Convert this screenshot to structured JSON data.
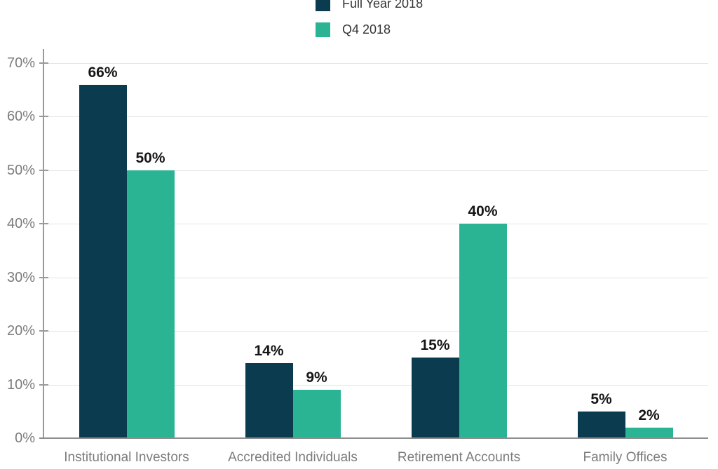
{
  "chart_data": {
    "type": "bar",
    "title": "",
    "categories": [
      "Institutional Investors",
      "Accredited Individuals",
      "Retirement Accounts",
      "Family Offices"
    ],
    "series": [
      {
        "name": "Full Year 2018",
        "color": "#0b3b4e",
        "values": [
          66,
          14,
          15,
          5
        ]
      },
      {
        "name": "Q4 2018",
        "color": "#2bb493",
        "values": [
          50,
          9,
          40,
          2
        ]
      }
    ],
    "value_labels": [
      [
        "66%",
        "14%",
        "15%",
        "5%"
      ],
      [
        "50%",
        "9%",
        "40%",
        "2%"
      ]
    ],
    "y_tick_labels": [
      "70%",
      "60%",
      "50%",
      "40%",
      "30%",
      "20%",
      "10%",
      "0%"
    ],
    "y_tick_values": [
      70,
      60,
      50,
      40,
      30,
      20,
      10,
      0
    ],
    "ylim": [
      0,
      70
    ],
    "grid": true,
    "legend_position": "top",
    "colors": {
      "grid_line": "#e4e4e4",
      "axis_line": "#9a9a9a",
      "baseline": "#8e8e8e",
      "axis_text": "#7c7c7c",
      "value_text": "#161616",
      "legend_text": "#343434"
    }
  }
}
